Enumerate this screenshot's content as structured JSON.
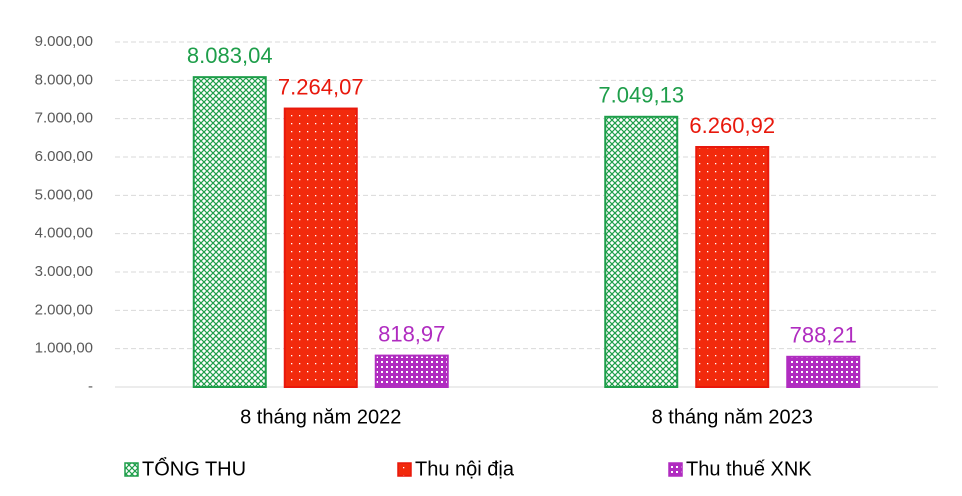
{
  "chart_data": {
    "type": "bar",
    "categories": [
      "8 tháng năm 2022",
      "8 tháng năm 2023"
    ],
    "series": [
      {
        "name": "TỔNG THU",
        "color": "#1e9e4a",
        "values": [
          8083.04,
          7049.13
        ],
        "value_labels": [
          "8.083,04",
          "7.049,13"
        ]
      },
      {
        "name": "Thu nội địa",
        "color": "#e8180c",
        "values": [
          7264.07,
          6260.92
        ],
        "value_labels": [
          "7.264,07",
          "6.260,92"
        ]
      },
      {
        "name": "Thu thuế XNK",
        "color": "#b02cc0",
        "values": [
          818.97,
          788.21
        ],
        "value_labels": [
          "818,97",
          "788,21"
        ]
      }
    ],
    "ylim": [
      0,
      9000
    ],
    "yticks": [
      {
        "value": 0,
        "label": "-"
      },
      {
        "value": 1000,
        "label": "1.000,00"
      },
      {
        "value": 2000,
        "label": "2.000,00"
      },
      {
        "value": 3000,
        "label": "3.000,00"
      },
      {
        "value": 4000,
        "label": "4.000,00"
      },
      {
        "value": 5000,
        "label": "5.000,00"
      },
      {
        "value": 6000,
        "label": "6.000,00"
      },
      {
        "value": 7000,
        "label": "7.000,00"
      },
      {
        "value": 8000,
        "label": "8.000,00"
      },
      {
        "value": 9000,
        "label": "9.000,00"
      }
    ],
    "grid": true,
    "legend": "bottom"
  }
}
